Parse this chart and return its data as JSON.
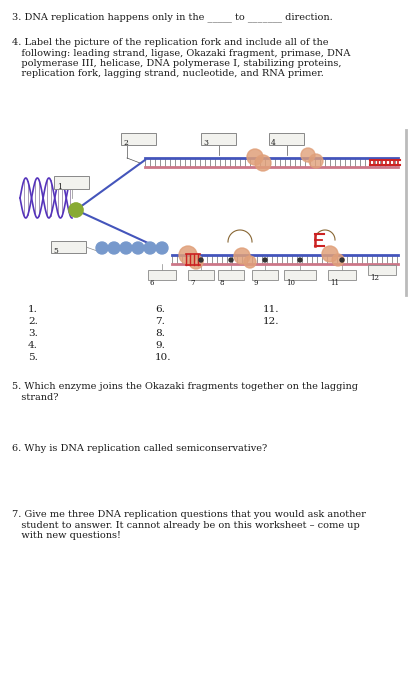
{
  "bg_color": "#ffffff",
  "q3_text": "3. DNA replication happens only in the _____ to _______ direction.",
  "q4_line1": "4. Label the picture of the replication fork and include all of the",
  "q4_line2": "   following: leading strand, ligase, Okazaki fragment, primase, DNA",
  "q4_line3": "   polymerase III, helicase, DNA polymerase I, stabilizing proteins,",
  "q4_line4": "   replication fork, lagging strand, nucleotide, and RNA primer.",
  "numbering_col1": [
    "1.",
    "2.",
    "3.",
    "4.",
    "5."
  ],
  "numbering_col2": [
    "6.",
    "7.",
    "8.",
    "9.",
    "10."
  ],
  "numbering_col3": [
    "11.",
    "12."
  ],
  "q5_line1": "5. Which enzyme joins the Okazaki fragments together on the lagging",
  "q5_line2": "   strand?",
  "q6_text": "6. Why is DNA replication called semiconservative?",
  "q7_line1": "7. Give me three DNA replication questions that you would ask another",
  "q7_line2": "   student to answer. It cannot already be on this worksheet – come up",
  "q7_line3": "   with new questions!",
  "font_size": 7.0,
  "text_color": "#1a1a1a",
  "helix_color": "#5533bb",
  "strand_blue": "#4455bb",
  "strand_red": "#bb4444",
  "bead_color": "#7799cc",
  "blob_color": "#e0a07a",
  "green_color": "#88aa33",
  "box_edge": "#888888",
  "box_face": "#f2f2ee"
}
